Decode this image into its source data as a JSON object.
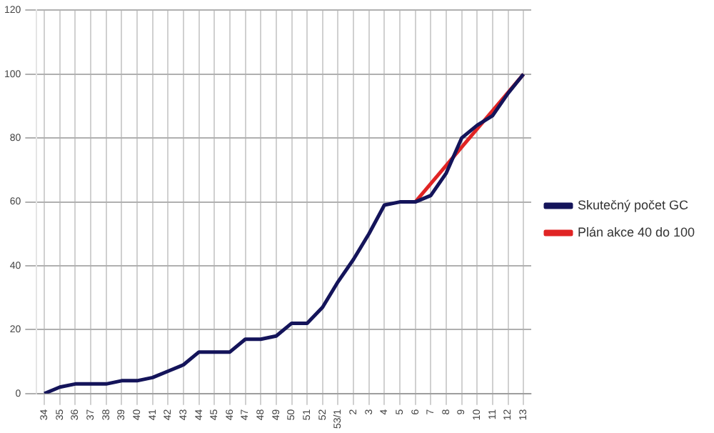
{
  "chart_data": {
    "type": "line",
    "categories": [
      "34",
      "35",
      "36",
      "37",
      "38",
      "39",
      "40",
      "41",
      "42",
      "43",
      "44",
      "45",
      "46",
      "47",
      "48",
      "49",
      "50",
      "51",
      "52",
      "53/1",
      "2",
      "3",
      "4",
      "5",
      "6",
      "7",
      "8",
      "9",
      "10",
      "11",
      "12",
      "13"
    ],
    "series": [
      {
        "name": "Skutečný počet GC",
        "color": "#14145a",
        "values": [
          0,
          2,
          3,
          3,
          3,
          4,
          4,
          5,
          7,
          9,
          13,
          13,
          13,
          17,
          17,
          18,
          22,
          22,
          27,
          35,
          42,
          50,
          59,
          60,
          60,
          62,
          69,
          80,
          84,
          87,
          94,
          100
        ]
      },
      {
        "name": "Plán akce 40 do 100",
        "color": "#e02424",
        "values": [
          null,
          null,
          null,
          null,
          null,
          null,
          null,
          null,
          null,
          null,
          null,
          null,
          null,
          null,
          null,
          null,
          null,
          null,
          null,
          null,
          null,
          null,
          null,
          null,
          60,
          null,
          null,
          null,
          null,
          null,
          null,
          100
        ]
      }
    ],
    "ylim": [
      0,
      120
    ],
    "yticks": [
      0,
      20,
      40,
      60,
      80,
      100,
      120
    ],
    "grid": true,
    "legend": "right",
    "marker": "none",
    "line_style": "solid"
  }
}
